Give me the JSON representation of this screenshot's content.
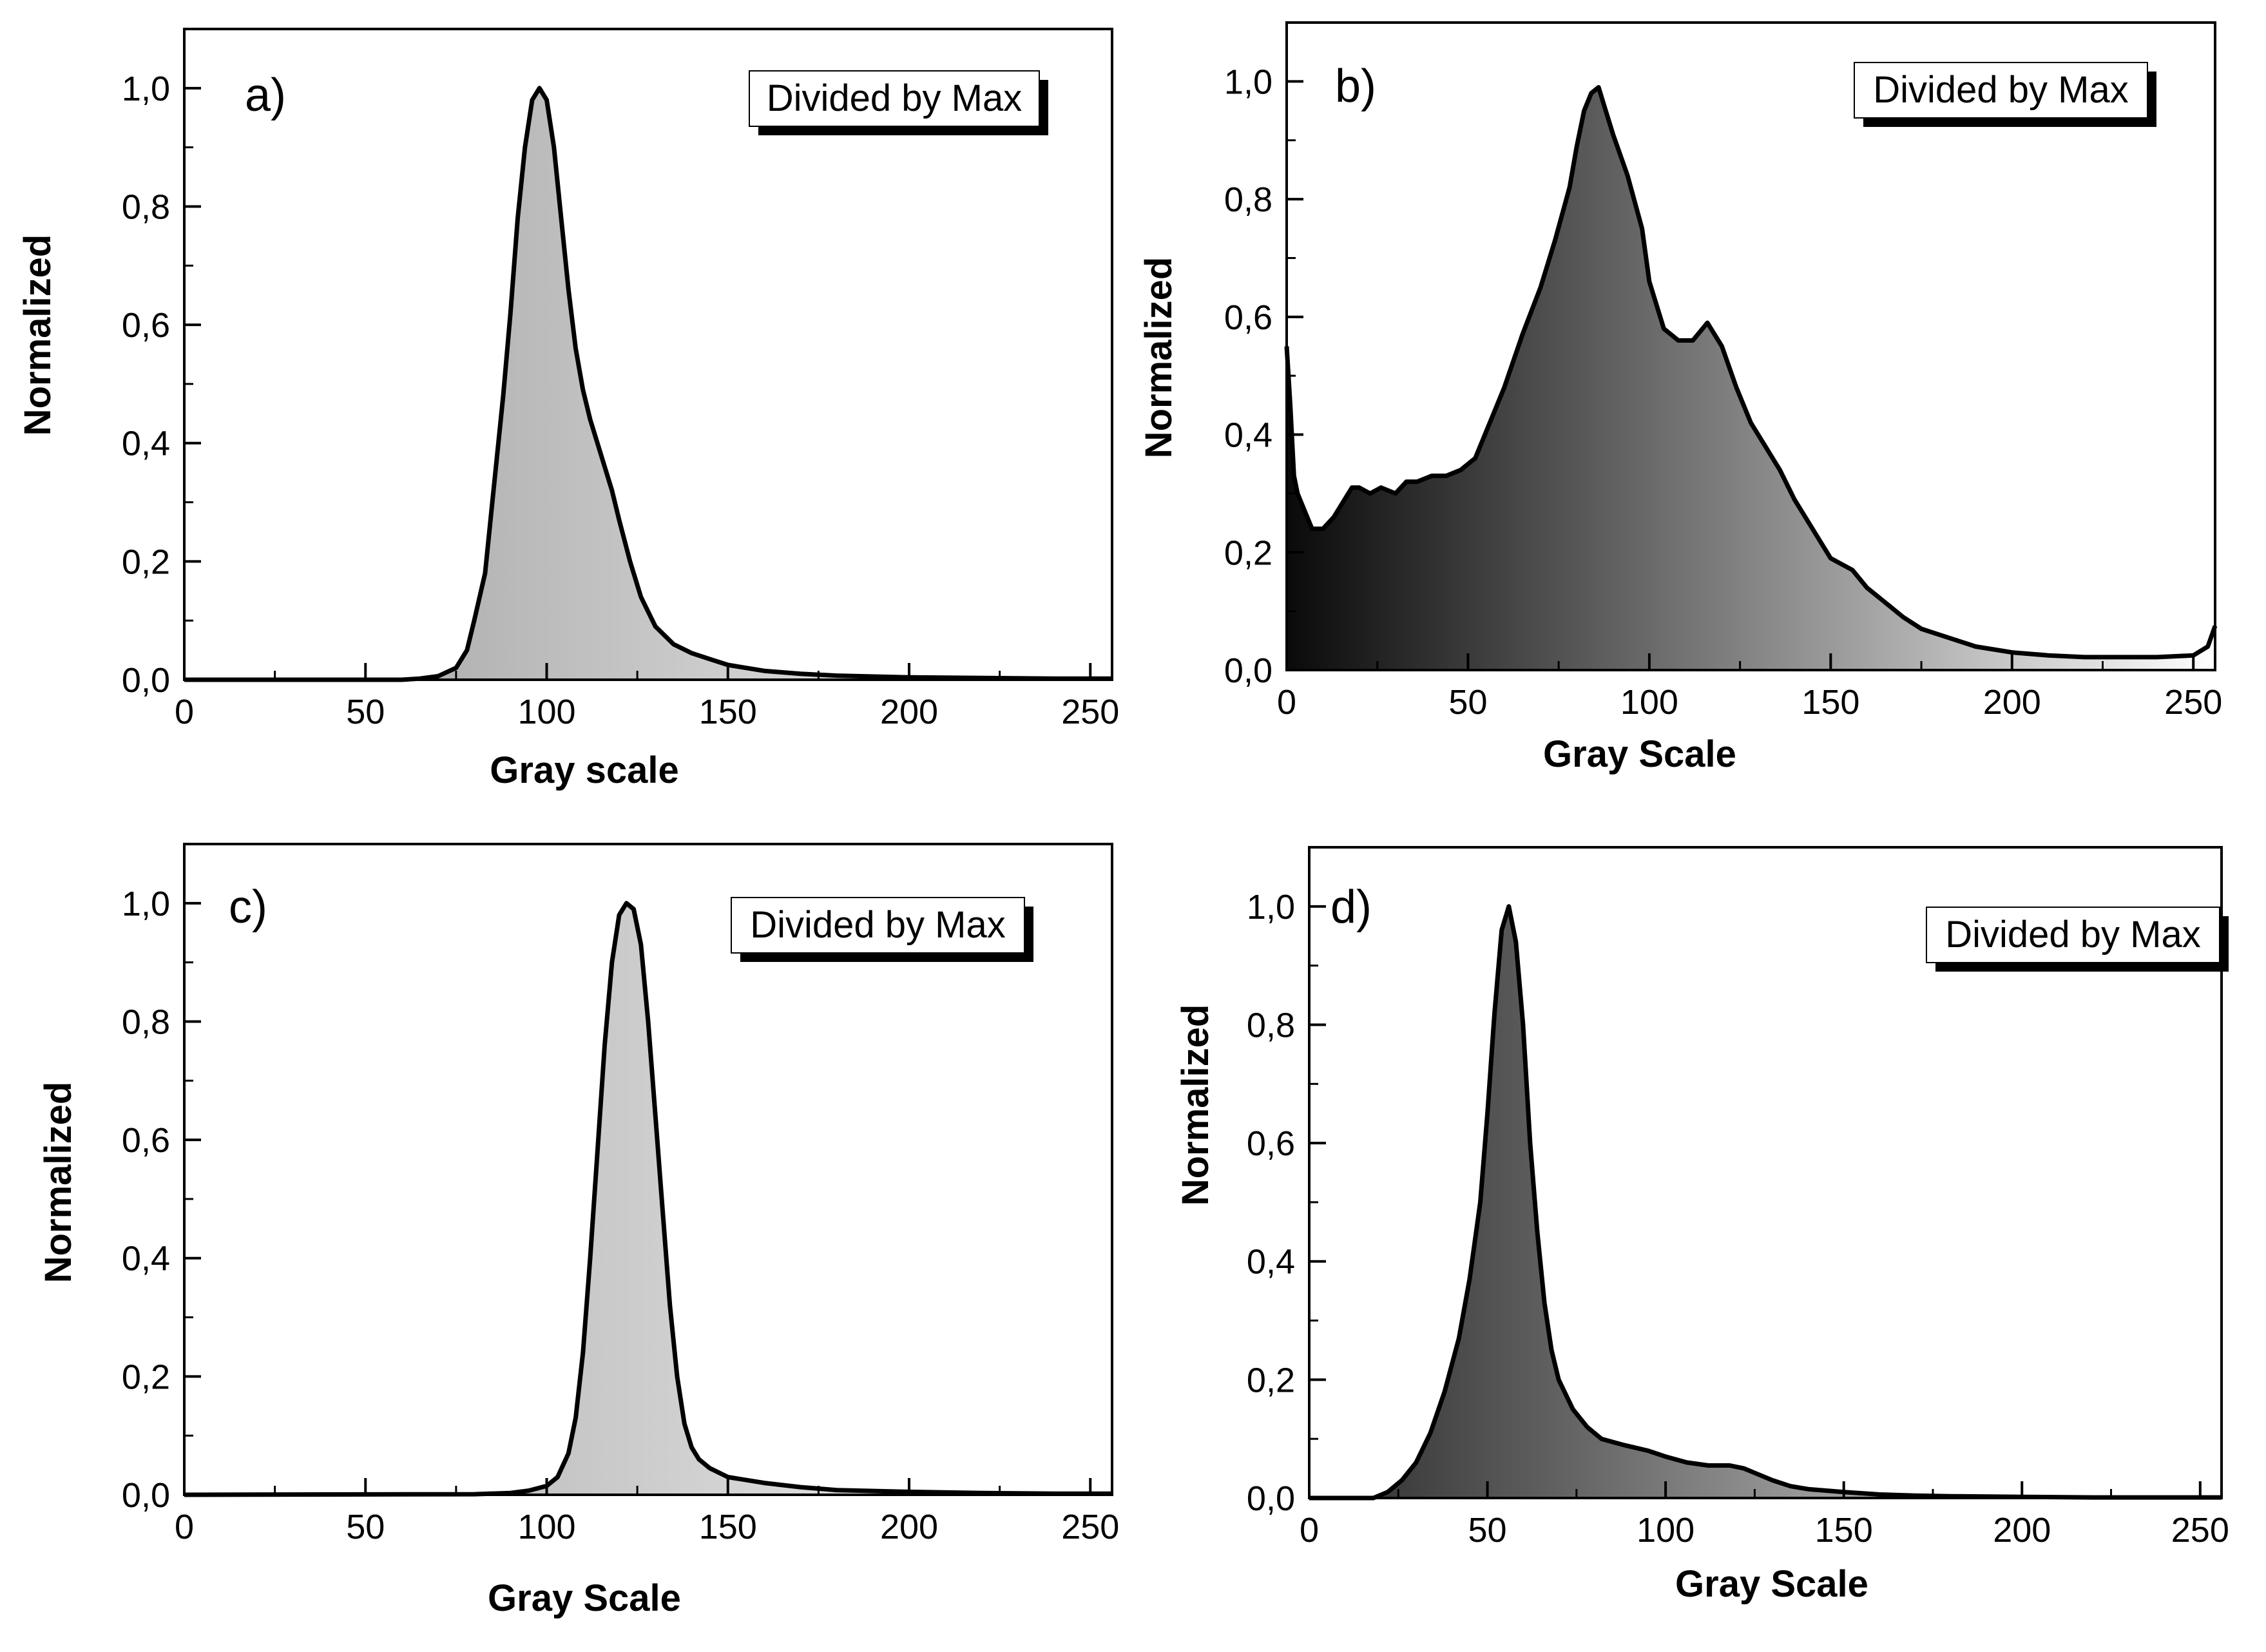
{
  "figure": {
    "panels": [
      {
        "id": "a",
        "panel_label": "a)",
        "legend": "Divided by Max",
        "chart_data": {
          "type": "area",
          "title": "",
          "xlabel": "Gray scale",
          "ylabel": "Normalized",
          "xlim": [
            0,
            256
          ],
          "ylim": [
            0,
            1.1
          ],
          "xticks": [
            0,
            50,
            100,
            150,
            200,
            250
          ],
          "xtick_labels": [
            "0",
            "50",
            "100",
            "150",
            "200",
            "250"
          ],
          "yticks": [
            0,
            0.2,
            0.4,
            0.6,
            0.8,
            1.0
          ],
          "ytick_labels": [
            "0,0",
            "0,2",
            "0,4",
            "0,6",
            "0,8",
            "1,0"
          ],
          "fill_gradient": [
            "#9a9a9a",
            "#f2f2f2"
          ],
          "series": [
            {
              "name": "Divided by Max",
              "x": [
                0,
                60,
                65,
                70,
                75,
                78,
                80,
                83,
                85,
                88,
                90,
                92,
                94,
                96,
                98,
                100,
                102,
                104,
                106,
                108,
                110,
                112,
                115,
                118,
                120,
                123,
                126,
                130,
                135,
                140,
                145,
                150,
                160,
                170,
                180,
                200,
                220,
                240,
                256
              ],
              "y": [
                0,
                0,
                0.002,
                0.006,
                0.02,
                0.05,
                0.1,
                0.18,
                0.3,
                0.48,
                0.62,
                0.78,
                0.9,
                0.98,
                1.0,
                0.98,
                0.9,
                0.78,
                0.66,
                0.56,
                0.49,
                0.44,
                0.38,
                0.32,
                0.27,
                0.2,
                0.14,
                0.09,
                0.06,
                0.045,
                0.035,
                0.025,
                0.015,
                0.01,
                0.007,
                0.004,
                0.003,
                0.002,
                0.002
              ]
            }
          ]
        }
      },
      {
        "id": "b",
        "panel_label": "b)",
        "legend": "Divided by Max",
        "chart_data": {
          "type": "area",
          "title": "",
          "xlabel": "Gray Scale",
          "ylabel": "Normalized",
          "xlim": [
            0,
            256
          ],
          "ylim": [
            0,
            1.1
          ],
          "xticks": [
            0,
            50,
            100,
            150,
            200,
            250
          ],
          "xtick_labels": [
            "0",
            "50",
            "100",
            "150",
            "200",
            "250"
          ],
          "yticks": [
            0,
            0.2,
            0.4,
            0.6,
            0.8,
            1.0
          ],
          "ytick_labels": [
            "0,0",
            "0,2",
            "0,4",
            "0,6",
            "0,8",
            "1,0"
          ],
          "fill_gradient": [
            "#0a0a0a",
            "#ffffff"
          ],
          "series": [
            {
              "name": "Divided by Max",
              "x": [
                0,
                1,
                2,
                3,
                5,
                7,
                10,
                13,
                16,
                18,
                20,
                23,
                26,
                30,
                33,
                36,
                40,
                44,
                48,
                52,
                56,
                60,
                65,
                70,
                74,
                78,
                80,
                82,
                84,
                86,
                88,
                90,
                94,
                98,
                100,
                104,
                108,
                112,
                116,
                118,
                120,
                124,
                128,
                132,
                136,
                140,
                146,
                150,
                156,
                160,
                166,
                170,
                175,
                180,
                185,
                190,
                195,
                200,
                210,
                220,
                230,
                240,
                250,
                254,
                256
              ],
              "y": [
                0.55,
                0.45,
                0.33,
                0.3,
                0.27,
                0.24,
                0.24,
                0.26,
                0.29,
                0.31,
                0.31,
                0.3,
                0.31,
                0.3,
                0.32,
                0.32,
                0.33,
                0.33,
                0.34,
                0.36,
                0.42,
                0.48,
                0.57,
                0.65,
                0.73,
                0.82,
                0.89,
                0.95,
                0.98,
                0.99,
                0.95,
                0.91,
                0.84,
                0.75,
                0.66,
                0.58,
                0.56,
                0.56,
                0.59,
                0.57,
                0.55,
                0.48,
                0.42,
                0.38,
                0.34,
                0.29,
                0.23,
                0.19,
                0.17,
                0.14,
                0.11,
                0.09,
                0.07,
                0.06,
                0.05,
                0.04,
                0.035,
                0.03,
                0.025,
                0.022,
                0.022,
                0.022,
                0.025,
                0.04,
                0.075
              ]
            }
          ]
        }
      },
      {
        "id": "c",
        "panel_label": "c)",
        "legend": "Divided by Max",
        "chart_data": {
          "type": "area",
          "title": "",
          "xlabel": "Gray Scale",
          "ylabel": "Normalized",
          "xlim": [
            0,
            256
          ],
          "ylim": [
            0,
            1.1
          ],
          "xticks": [
            0,
            50,
            100,
            150,
            200,
            250
          ],
          "xtick_labels": [
            "0",
            "50",
            "100",
            "150",
            "200",
            "250"
          ],
          "yticks": [
            0,
            0.2,
            0.4,
            0.6,
            0.8,
            1.0
          ],
          "ytick_labels": [
            "0,0",
            "0,2",
            "0,4",
            "0,6",
            "0,8",
            "1,0"
          ],
          "fill_gradient": [
            "#a8a8a8",
            "#f2f2f2"
          ],
          "series": [
            {
              "name": "Divided by Max",
              "x": [
                0,
                80,
                90,
                95,
                100,
                103,
                106,
                108,
                110,
                112,
                114,
                116,
                118,
                120,
                122,
                124,
                126,
                128,
                130,
                132,
                134,
                136,
                138,
                140,
                142,
                145,
                150,
                160,
                170,
                180,
                200,
                220,
                240,
                256
              ],
              "y": [
                0,
                0.001,
                0.003,
                0.007,
                0.015,
                0.03,
                0.07,
                0.13,
                0.24,
                0.4,
                0.58,
                0.76,
                0.9,
                0.98,
                1.0,
                0.99,
                0.93,
                0.8,
                0.64,
                0.48,
                0.32,
                0.2,
                0.12,
                0.08,
                0.06,
                0.045,
                0.03,
                0.02,
                0.013,
                0.008,
                0.005,
                0.003,
                0.002,
                0.002
              ]
            }
          ]
        }
      },
      {
        "id": "d",
        "panel_label": "d)",
        "legend": "Divided by Max",
        "chart_data": {
          "type": "area",
          "title": "",
          "xlabel": "Gray Scale",
          "ylabel": "Normalized",
          "xlim": [
            0,
            256
          ],
          "ylim": [
            0,
            1.1
          ],
          "xticks": [
            0,
            50,
            100,
            150,
            200,
            250
          ],
          "xtick_labels": [
            "0",
            "50",
            "100",
            "150",
            "200",
            "250"
          ],
          "yticks": [
            0,
            0.2,
            0.4,
            0.6,
            0.8,
            1.0
          ],
          "ytick_labels": [
            "0,0",
            "0,2",
            "0,4",
            "0,6",
            "0,8",
            "1,0"
          ],
          "fill_gradient": [
            "#2a2a2a",
            "#f5f5f5"
          ],
          "series": [
            {
              "name": "Divided by Max",
              "x": [
                0,
                18,
                22,
                26,
                30,
                34,
                38,
                42,
                45,
                48,
                50,
                52,
                54,
                56,
                58,
                60,
                62,
                64,
                66,
                68,
                70,
                74,
                78,
                82,
                88,
                95,
                100,
                106,
                112,
                118,
                122,
                126,
                130,
                135,
                140,
                150,
                160,
                170,
                180,
                200,
                220,
                240,
                256
              ],
              "y": [
                0,
                0,
                0.01,
                0.03,
                0.06,
                0.11,
                0.18,
                0.27,
                0.37,
                0.5,
                0.65,
                0.82,
                0.96,
                1.0,
                0.94,
                0.8,
                0.6,
                0.45,
                0.33,
                0.25,
                0.2,
                0.15,
                0.12,
                0.1,
                0.09,
                0.08,
                0.07,
                0.06,
                0.055,
                0.055,
                0.05,
                0.04,
                0.03,
                0.02,
                0.015,
                0.01,
                0.006,
                0.004,
                0.003,
                0.002,
                0.001,
                0.001,
                0.001
              ]
            }
          ]
        }
      }
    ]
  }
}
